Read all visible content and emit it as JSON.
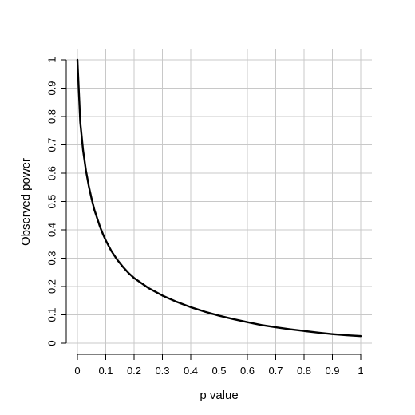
{
  "chart_data": {
    "type": "line",
    "title": "",
    "xlabel": "p value",
    "ylabel": "Observed power",
    "xlim": [
      0,
      1
    ],
    "ylim": [
      0,
      1
    ],
    "grid": true,
    "x_ticks": [
      0,
      0.1,
      0.2,
      0.3,
      0.4,
      0.5,
      0.6,
      0.7,
      0.8,
      0.9,
      1
    ],
    "x_tick_labels": [
      "0",
      "0.1",
      "0.2",
      "0.3",
      "0.4",
      "0.5",
      "0.6",
      "0.7",
      "0.8",
      "0.9",
      "1"
    ],
    "y_ticks": [
      0,
      0.1,
      0.2,
      0.3,
      0.4,
      0.5,
      0.6,
      0.7,
      0.8,
      0.9,
      1
    ],
    "y_tick_labels": [
      "0",
      "0.1",
      "0.2",
      "0.3",
      "0.4",
      "0.5",
      "0.6",
      "0.7",
      "0.8",
      "0.9",
      "1"
    ],
    "series": [
      {
        "color": "#000000",
        "x": [
          0.0,
          0.01,
          0.02,
          0.03,
          0.04,
          0.05,
          0.06,
          0.07,
          0.08,
          0.09,
          0.1,
          0.12,
          0.14,
          0.16,
          0.18,
          0.2,
          0.25,
          0.3,
          0.35,
          0.4,
          0.45,
          0.5,
          0.55,
          0.6,
          0.65,
          0.7,
          0.75,
          0.8,
          0.85,
          0.9,
          0.95,
          1.0
        ],
        "y": [
          1.0,
          0.78,
          0.68,
          0.61,
          0.555,
          0.51,
          0.47,
          0.44,
          0.41,
          0.385,
          0.363,
          0.325,
          0.295,
          0.27,
          0.248,
          0.23,
          0.195,
          0.168,
          0.146,
          0.127,
          0.111,
          0.097,
          0.085,
          0.074,
          0.064,
          0.056,
          0.049,
          0.043,
          0.037,
          0.032,
          0.028,
          0.025
        ]
      }
    ]
  }
}
